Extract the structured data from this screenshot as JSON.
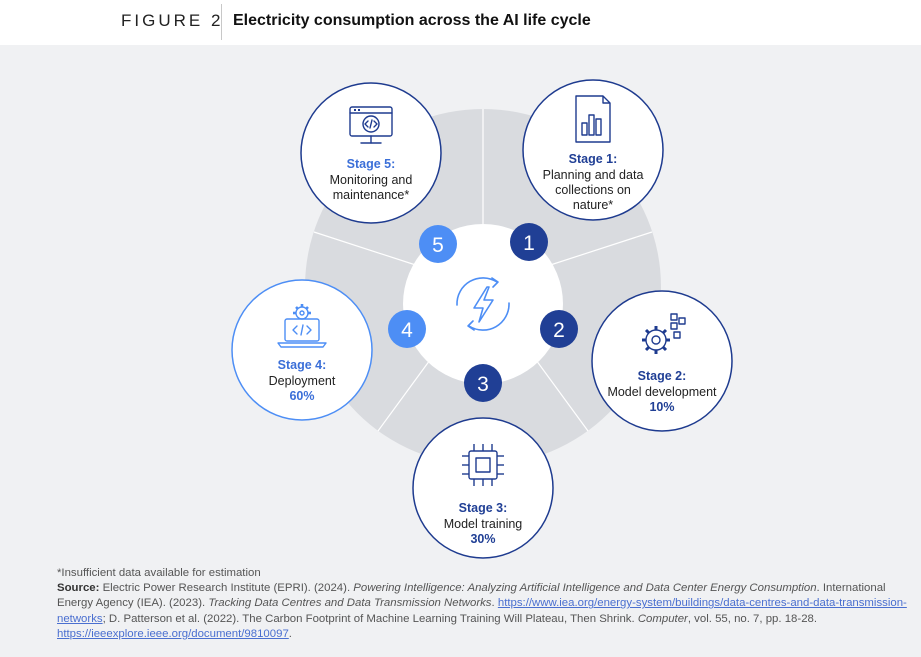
{
  "figure": {
    "label": "FIGURE 2",
    "title": "Electricity consumption across the AI life cycle"
  },
  "stages": [
    {
      "number": "1",
      "heading": "Stage 1:",
      "lines": [
        "Planning and data",
        "collections on",
        "nature*"
      ],
      "share": ""
    },
    {
      "number": "2",
      "heading": "Stage 2:",
      "lines": [
        "Model development"
      ],
      "share": "10%"
    },
    {
      "number": "3",
      "heading": "Stage 3:",
      "lines": [
        "Model training"
      ],
      "share": "30%"
    },
    {
      "number": "4",
      "heading": "Stage 4:",
      "lines": [
        "Deployment"
      ],
      "share": "60%"
    },
    {
      "number": "5",
      "heading": "Stage 5:",
      "lines": [
        "Monitoring and",
        "maintenance*"
      ],
      "share": ""
    }
  ],
  "icons": {
    "center": "lightning-cycle-icon",
    "stage1": "bar-chart-document-icon",
    "stage2": "gears-icon",
    "stage3": "chip-icon",
    "stage4": "laptop-code-gear-icon",
    "stage5": "monitor-code-icon"
  },
  "colors": {
    "dark_blue": "#203f95",
    "light_blue": "#4d8ef5",
    "ring_gray": "#d9dbdf",
    "circle_border": "#1e3b8f"
  },
  "footer": {
    "note": "*Insufficient data available for estimation",
    "source_label": "Source:",
    "source_1": " Electric Power Research Institute (EPRI). (2024). ",
    "source_1_title": "Powering Intelligence: Analyzing Artificial Intelligence and Data Center Energy Consumption",
    "source_2": ". International Energy Agency (IEA). (2023). ",
    "source_2_title": "Tracking Data Centres and Data Transmission Networks",
    "source_3": ". ",
    "link_1": "https://www.iea.org/energy-system/buildings/data-centres-and-data-transmission-networks",
    "source_4": "; D. Patterson et al. (2022). The Carbon Footprint of Machine Learning Training Will Plateau, Then Shrink. ",
    "source_4_title": "Computer",
    "source_5": ", vol. 55, no. 7, pp. 18-28. ",
    "link_2": "https://ieeexplore.ieee.org/document/9810097",
    "source_6": "."
  }
}
